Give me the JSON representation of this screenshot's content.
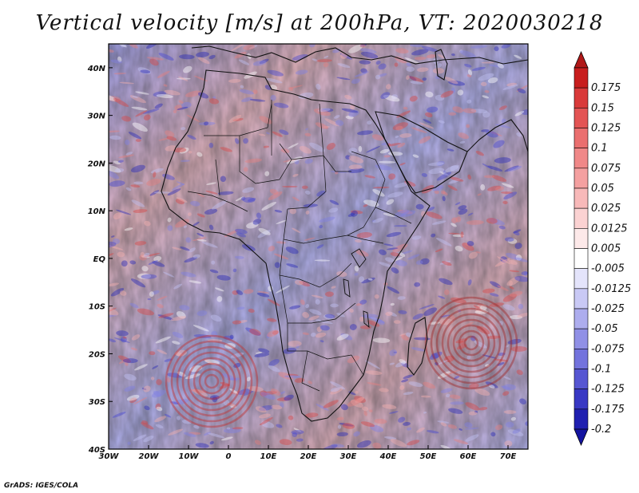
{
  "title": "Vertical velocity [m/s] at 200hPa, VT: 2020030218",
  "credit": "GrADS: IGES/COLA",
  "map": {
    "lon_range": [
      -30,
      75
    ],
    "lat_range": [
      -40,
      45
    ],
    "lon_ticks": [
      {
        "value": -30,
        "label": "30W"
      },
      {
        "value": -20,
        "label": "20W"
      },
      {
        "value": -10,
        "label": "10W"
      },
      {
        "value": 0,
        "label": "0"
      },
      {
        "value": 10,
        "label": "10E"
      },
      {
        "value": 20,
        "label": "20E"
      },
      {
        "value": 30,
        "label": "30E"
      },
      {
        "value": 40,
        "label": "40E"
      },
      {
        "value": 50,
        "label": "50E"
      },
      {
        "value": 60,
        "label": "60E"
      },
      {
        "value": 70,
        "label": "70E"
      }
    ],
    "lat_ticks": [
      {
        "value": 40,
        "label": "40N"
      },
      {
        "value": 30,
        "label": "30N"
      },
      {
        "value": 20,
        "label": "20N"
      },
      {
        "value": 10,
        "label": "10N"
      },
      {
        "value": 0,
        "label": "EQ"
      },
      {
        "value": -10,
        "label": "10S"
      },
      {
        "value": -20,
        "label": "20S"
      },
      {
        "value": -30,
        "label": "30S"
      },
      {
        "value": -40,
        "label": "40S"
      }
    ]
  },
  "colorbar": {
    "levels": [
      {
        "label": "0.175",
        "color": "#c81e1e"
      },
      {
        "label": "0.15",
        "color": "#d93a3a"
      },
      {
        "label": "0.125",
        "color": "#e35454"
      },
      {
        "label": "0.1",
        "color": "#ea6f6f"
      },
      {
        "label": "0.075",
        "color": "#f08888"
      },
      {
        "label": "0.05",
        "color": "#f4a0a0"
      },
      {
        "label": "0.025",
        "color": "#f8b9b9"
      },
      {
        "label": "0.0125",
        "color": "#fbd2d2"
      },
      {
        "label": "0.005",
        "color": "#fde9e9"
      },
      {
        "label": "-0.005",
        "color": "#ffffff"
      },
      {
        "label": "-0.0125",
        "color": "#e4e4fb"
      },
      {
        "label": "-0.025",
        "color": "#c9c9f5"
      },
      {
        "label": "-0.05",
        "color": "#adadee"
      },
      {
        "label": "-0.075",
        "color": "#9090e6"
      },
      {
        "label": "-0.1",
        "color": "#7373dd"
      },
      {
        "label": "-0.125",
        "color": "#5656d2"
      },
      {
        "label": "-0.175",
        "color": "#3838c4"
      },
      {
        "label": "-0.2",
        "color": "#2020b0"
      }
    ],
    "top_color": "#b01818",
    "bottom_color": "#1414a0"
  }
}
